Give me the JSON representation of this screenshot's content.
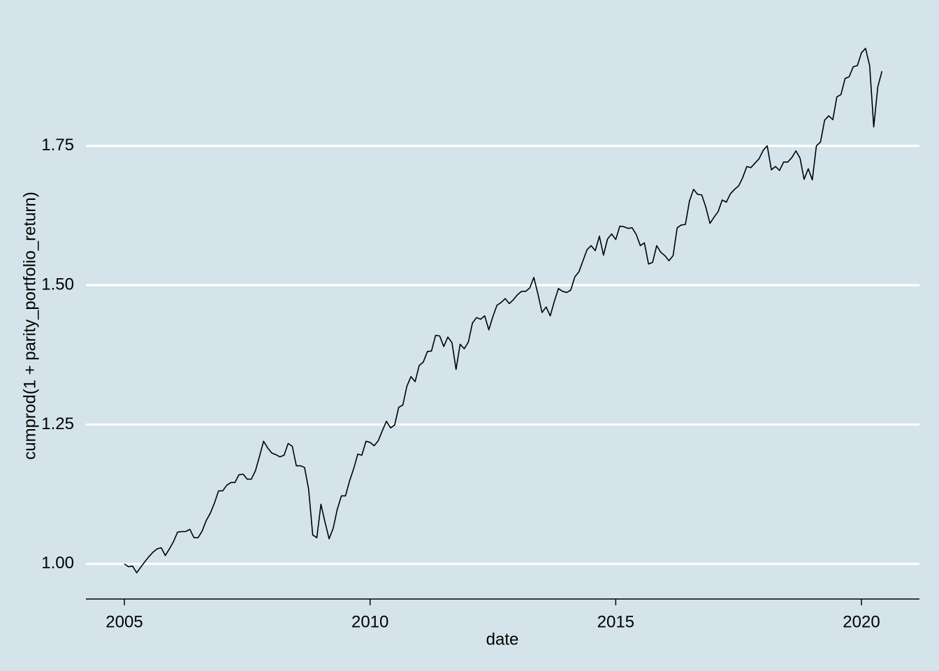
{
  "chart_data": {
    "type": "line",
    "x_label": "date",
    "y_label": "cumprod(1 + parity_portfolio_return)",
    "x": [
      2005,
      2005.083,
      2005.167,
      2005.25,
      2005.333,
      2005.417,
      2005.5,
      2005.583,
      2005.667,
      2005.75,
      2005.833,
      2005.917,
      2006,
      2006.083,
      2006.167,
      2006.25,
      2006.333,
      2006.417,
      2006.5,
      2006.583,
      2006.667,
      2006.75,
      2006.833,
      2006.917,
      2007,
      2007.083,
      2007.167,
      2007.25,
      2007.333,
      2007.417,
      2007.5,
      2007.583,
      2007.667,
      2007.75,
      2007.833,
      2007.917,
      2008,
      2008.083,
      2008.167,
      2008.25,
      2008.333,
      2008.417,
      2008.5,
      2008.583,
      2008.667,
      2008.75,
      2008.833,
      2008.917,
      2009,
      2009.083,
      2009.167,
      2009.25,
      2009.333,
      2009.417,
      2009.5,
      2009.583,
      2009.667,
      2009.75,
      2009.833,
      2009.917,
      2010,
      2010.083,
      2010.167,
      2010.25,
      2010.333,
      2010.417,
      2010.5,
      2010.583,
      2010.667,
      2010.75,
      2010.833,
      2010.917,
      2011,
      2011.083,
      2011.167,
      2011.25,
      2011.333,
      2011.417,
      2011.5,
      2011.583,
      2011.667,
      2011.75,
      2011.833,
      2011.917,
      2012,
      2012.083,
      2012.167,
      2012.25,
      2012.333,
      2012.417,
      2012.5,
      2012.583,
      2012.667,
      2012.75,
      2012.833,
      2012.917,
      2013,
      2013.083,
      2013.167,
      2013.25,
      2013.333,
      2013.417,
      2013.5,
      2013.583,
      2013.667,
      2013.75,
      2013.833,
      2013.917,
      2014,
      2014.083,
      2014.167,
      2014.25,
      2014.333,
      2014.417,
      2014.5,
      2014.583,
      2014.667,
      2014.75,
      2014.833,
      2014.917,
      2015,
      2015.083,
      2015.167,
      2015.25,
      2015.333,
      2015.417,
      2015.5,
      2015.583,
      2015.667,
      2015.75,
      2015.833,
      2015.917,
      2016,
      2016.083,
      2016.167,
      2016.25,
      2016.333,
      2016.417,
      2016.5,
      2016.583,
      2016.667,
      2016.75,
      2016.833,
      2016.917,
      2017,
      2017.083,
      2017.167,
      2017.25,
      2017.333,
      2017.417,
      2017.5,
      2017.583,
      2017.667,
      2017.75,
      2017.833,
      2017.917,
      2018,
      2018.083,
      2018.167,
      2018.25,
      2018.333,
      2018.417,
      2018.5,
      2018.583,
      2018.667,
      2018.75,
      2018.833,
      2018.917,
      2019,
      2019.083,
      2019.167,
      2019.25,
      2019.333,
      2019.417,
      2019.5,
      2019.583,
      2019.667,
      2019.75,
      2019.833,
      2019.917,
      2020,
      2020.083,
      2020.167,
      2020.25,
      2020.333,
      2020.417
    ],
    "series": [
      {
        "color": "#000000",
        "values": [
          1.0,
          0.995,
          0.996,
          0.984,
          0.994,
          1.004,
          1.013,
          1.021,
          1.027,
          1.029,
          1.015,
          1.027,
          1.04,
          1.057,
          1.058,
          1.058,
          1.062,
          1.047,
          1.047,
          1.059,
          1.078,
          1.091,
          1.109,
          1.131,
          1.131,
          1.141,
          1.146,
          1.146,
          1.16,
          1.161,
          1.152,
          1.152,
          1.167,
          1.193,
          1.22,
          1.208,
          1.199,
          1.196,
          1.192,
          1.195,
          1.216,
          1.211,
          1.176,
          1.176,
          1.173,
          1.134,
          1.052,
          1.047,
          1.107,
          1.075,
          1.045,
          1.064,
          1.098,
          1.122,
          1.122,
          1.149,
          1.171,
          1.197,
          1.195,
          1.22,
          1.218,
          1.212,
          1.221,
          1.239,
          1.256,
          1.244,
          1.249,
          1.281,
          1.285,
          1.319,
          1.336,
          1.327,
          1.356,
          1.362,
          1.381,
          1.382,
          1.41,
          1.409,
          1.39,
          1.407,
          1.397,
          1.349,
          1.394,
          1.386,
          1.398,
          1.432,
          1.442,
          1.439,
          1.445,
          1.42,
          1.444,
          1.464,
          1.469,
          1.476,
          1.467,
          1.474,
          1.483,
          1.489,
          1.489,
          1.495,
          1.514,
          1.484,
          1.451,
          1.461,
          1.445,
          1.471,
          1.494,
          1.489,
          1.487,
          1.491,
          1.515,
          1.524,
          1.544,
          1.564,
          1.571,
          1.562,
          1.588,
          1.554,
          1.583,
          1.592,
          1.582,
          1.606,
          1.605,
          1.602,
          1.603,
          1.591,
          1.571,
          1.576,
          1.538,
          1.541,
          1.571,
          1.559,
          1.553,
          1.544,
          1.553,
          1.603,
          1.608,
          1.609,
          1.651,
          1.672,
          1.663,
          1.662,
          1.64,
          1.611,
          1.622,
          1.632,
          1.653,
          1.649,
          1.664,
          1.672,
          1.678,
          1.693,
          1.713,
          1.711,
          1.719,
          1.727,
          1.742,
          1.75,
          1.707,
          1.713,
          1.706,
          1.721,
          1.721,
          1.729,
          1.741,
          1.728,
          1.69,
          1.709,
          1.689,
          1.75,
          1.757,
          1.796,
          1.804,
          1.797,
          1.838,
          1.842,
          1.871,
          1.874,
          1.892,
          1.894,
          1.917,
          1.925,
          1.894,
          1.784,
          1.856,
          1.884
        ]
      }
    ],
    "xlim": [
      2004.218,
      2021.18
    ],
    "xticks": [
      2005,
      2010,
      2015,
      2020
    ],
    "ylim": [
      0.937,
      1.939
    ],
    "yticks": [
      {
        "value": 1,
        "label": "1.00"
      },
      {
        "value": 1.25,
        "label": "1.25"
      },
      {
        "value": 1.5,
        "label": "1.50"
      },
      {
        "value": 1.75,
        "label": "1.75"
      }
    ],
    "grid": true,
    "background": "#d5e4eb"
  }
}
